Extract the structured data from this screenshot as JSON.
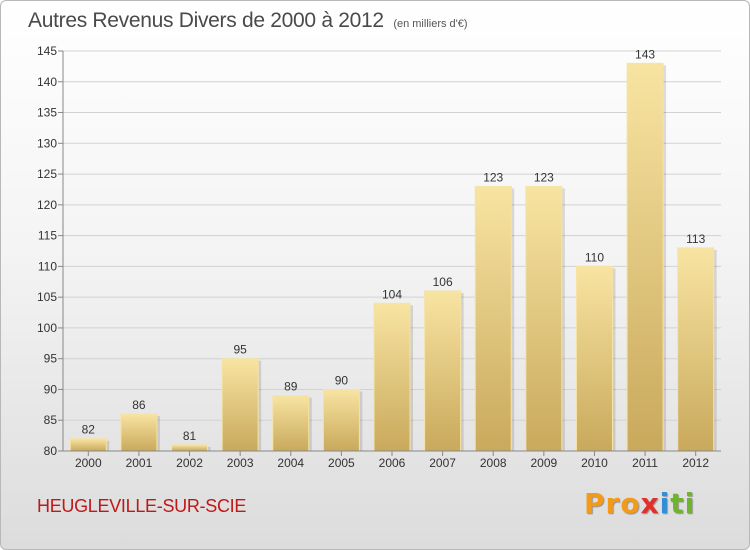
{
  "title": "Autres Revenus Divers de 2000 à 2012",
  "subtitle": "(en milliers d'€)",
  "location": "HEUGLEVILLE-SUR-SCIE",
  "logo": {
    "p1": "Pro",
    "p2": "x",
    "p3": "i",
    "p4": "ti"
  },
  "colors": {
    "bar_light": "#f8e4a2",
    "bar_dark": "#c9a95c",
    "location": "#c01818"
  },
  "chart_data": {
    "type": "bar",
    "title": "Autres Revenus Divers de 2000 à 2012",
    "xlabel": "",
    "ylabel": "",
    "categories": [
      "2000",
      "2001",
      "2002",
      "2003",
      "2004",
      "2005",
      "2006",
      "2007",
      "2008",
      "2009",
      "2010",
      "2011",
      "2012"
    ],
    "values": [
      82,
      86,
      81,
      95,
      89,
      90,
      104,
      106,
      123,
      123,
      110,
      143,
      113
    ],
    "ylim": [
      80,
      145
    ],
    "yticks": [
      80,
      85,
      90,
      95,
      100,
      105,
      110,
      115,
      120,
      125,
      130,
      135,
      140,
      145
    ],
    "grid": true
  }
}
